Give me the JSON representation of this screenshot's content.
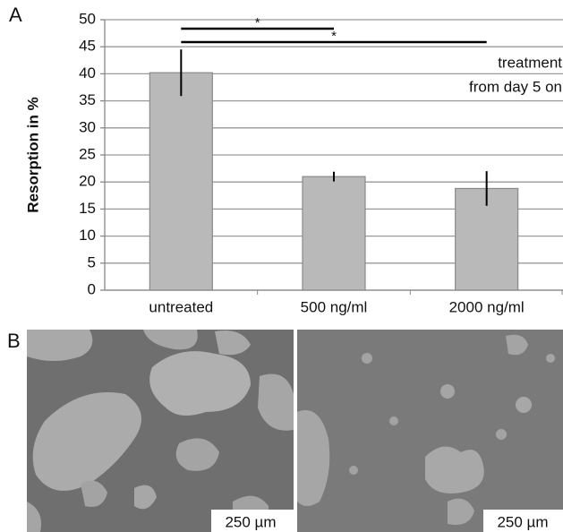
{
  "chart_data": {
    "type": "bar",
    "panel_label": "A",
    "y_label": "Resorption in %",
    "categories": [
      "untreated",
      "500 ng/ml",
      "2000 ng/ml"
    ],
    "values": [
      40.2,
      21,
      18.8
    ],
    "errors": [
      4.3,
      0.9,
      3.2
    ],
    "color": "#b9b9b9",
    "ylim": [
      0,
      50
    ],
    "yticks": [
      0,
      5,
      10,
      15,
      20,
      25,
      30,
      35,
      40,
      45,
      50
    ],
    "grid": true,
    "annotation": [
      "treatment",
      "from day 5 on"
    ],
    "significance": [
      "*",
      "*"
    ]
  },
  "images": {
    "panel_label": "B",
    "scale_bars": [
      "250 µm",
      "250 µm"
    ]
  }
}
